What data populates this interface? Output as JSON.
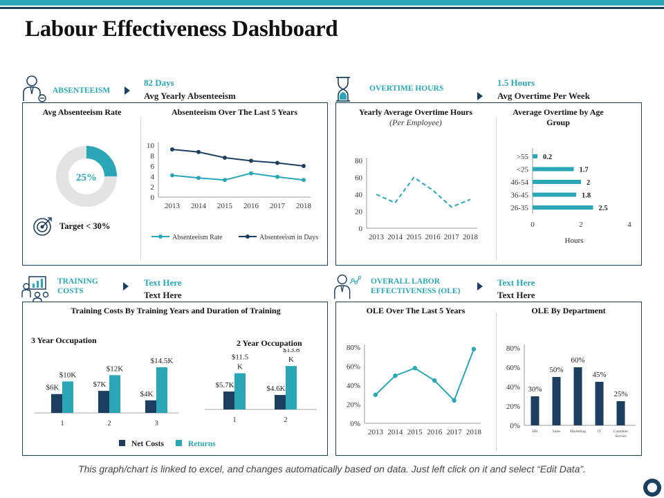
{
  "title": "Labour Effectiveness Dashboard",
  "footer": "This graph/chart is linked to excel, and changes automatically based on data.  Just left click on it and select “Edit Data”.",
  "colors": {
    "teal": "#2aa6b6",
    "navy": "#1c3f5f"
  },
  "sections": {
    "absenteeism": {
      "label": "ABSENTEEISM",
      "value": "82 Days",
      "sub": "Avg Yearly Absenteeism",
      "icon": "person-icon"
    },
    "overtime": {
      "label": "OVERTIME HOURS",
      "value": "1.5 Hours",
      "sub": "Avg Overtime Per Week",
      "icon": "hourglass-icon"
    },
    "training": {
      "label1": "TRAINING",
      "label2": "COSTS",
      "value": "Text Here",
      "sub": "Text Here",
      "icon": "presentation-icon"
    },
    "ole": {
      "label1": "OVERALL LABOR",
      "label2": "EFFECTIVENESS (OLE)",
      "value": "Text Here",
      "sub": "Text Here",
      "icon": "person-network-icon"
    }
  },
  "panels": {
    "absRate": {
      "title": "Avg Absenteeism Rate",
      "target": "Target < 30%"
    },
    "absTrend": {
      "title": "Absenteeism Over The Last 5 Years"
    },
    "otYearly": {
      "title": "Yearly Average Overtime Hours",
      "sub": "(Per Employee)"
    },
    "otAge": {
      "title": "Average Overtime by Age Group"
    },
    "trainCosts": {
      "title": "Training Costs By Training Years and Duration of Training",
      "group3": "3 Year Occupation",
      "group2": "2 Year Occupation"
    },
    "oleTrend": {
      "title": "OLE Over The Last 5 Years"
    },
    "oleDept": {
      "title": "OLE By Department"
    }
  },
  "chart_data": [
    {
      "id": "donut",
      "type": "pie",
      "title": "Avg Absenteeism Rate",
      "values": [
        25,
        75
      ],
      "label": "25%"
    },
    {
      "id": "absTrend",
      "type": "line",
      "title": "Absenteeism Over The Last 5 Years",
      "x": [
        "2013",
        "2014",
        "2015",
        "2016",
        "2017",
        "2018"
      ],
      "yticks": [
        "0",
        "2",
        "4",
        "6",
        "8",
        "10"
      ],
      "ylim": [
        0,
        10
      ],
      "series": [
        {
          "name": "Absenteeism Rate",
          "values": [
            4.2,
            3.7,
            3.3,
            4.6,
            3.9,
            3.3
          ]
        },
        {
          "name": "Absenteeism in Days",
          "values": [
            9.2,
            8.7,
            7.6,
            7.0,
            6.6,
            6.0
          ]
        }
      ]
    },
    {
      "id": "otYearly",
      "type": "line",
      "title": "Yearly Average Overtime Hours",
      "x": [
        "2013",
        "2014",
        "2015",
        "2016",
        "2017",
        "2018"
      ],
      "yticks": [
        "0",
        "20",
        "40",
        "60",
        "80"
      ],
      "ylim": [
        0,
        80
      ],
      "values": [
        40,
        30,
        60,
        45,
        25,
        34
      ]
    },
    {
      "id": "otAge",
      "type": "bar",
      "title": "Average Overtime by Age Group",
      "categories": [
        ">55",
        "<25",
        "46-54",
        "36-45",
        "26-35"
      ],
      "values": [
        0.2,
        1.7,
        2,
        1.8,
        2.5
      ],
      "labels": [
        "0.2",
        "1.7",
        "2",
        "1.8",
        "2.5"
      ],
      "xticks": [
        "0",
        "2",
        "4"
      ],
      "xlim": [
        0,
        4
      ],
      "xlabel": "Hours"
    },
    {
      "id": "train3",
      "type": "bar",
      "title": "3 Year Occupation",
      "categories": [
        "1",
        "2",
        "3"
      ],
      "series": [
        {
          "name": "Net Costs",
          "values": [
            6,
            7,
            4
          ],
          "labels": [
            "$6K",
            "$7K",
            "$4K"
          ]
        },
        {
          "name": "Returns",
          "values": [
            10,
            12,
            14.5
          ],
          "labels": [
            "$10K",
            "$12K",
            "$14.5K"
          ]
        }
      ]
    },
    {
      "id": "train2",
      "type": "bar",
      "title": "2 Year Occupation",
      "categories": [
        "1",
        "2"
      ],
      "series": [
        {
          "name": "Net Costs",
          "values": [
            5.7,
            4.6
          ],
          "labels": [
            "$5.7K",
            "$4.6K"
          ]
        },
        {
          "name": "Returns",
          "values": [
            11.5,
            13.8
          ],
          "labels": [
            "$11.5 K",
            "$13.8 K"
          ]
        }
      ]
    },
    {
      "id": "oleTrend",
      "type": "line",
      "title": "OLE Over The Last 5 Years",
      "x": [
        "2013",
        "2014",
        "2015",
        "2016",
        "2017",
        "2018"
      ],
      "yticks": [
        "0%",
        "20%",
        "40%",
        "60%",
        "80%"
      ],
      "ylim": [
        0,
        80
      ],
      "values": [
        30,
        50,
        58,
        45,
        24,
        78
      ]
    },
    {
      "id": "oleDept",
      "type": "bar",
      "title": "OLE By Department",
      "categories": [
        "HR",
        "Sales",
        "Marketing",
        "IT",
        "Customer Service"
      ],
      "values": [
        30,
        50,
        60,
        45,
        25
      ],
      "labels": [
        "30%",
        "50%",
        "60%",
        "45%",
        "25%"
      ],
      "yticks": [
        "0%",
        "20%",
        "40%",
        "60%",
        "80%"
      ],
      "ylim": [
        0,
        80
      ]
    }
  ]
}
